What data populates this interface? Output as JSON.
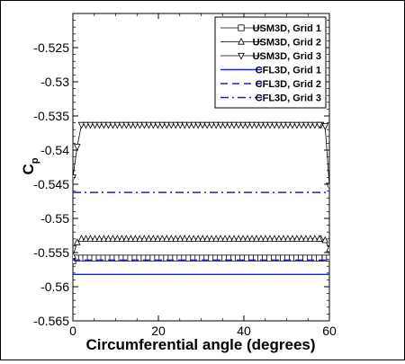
{
  "chart_data": {
    "type": "line",
    "xlabel": "Circumferential angle (degrees)",
    "ylabel_main": "C",
    "ylabel_sub": "p",
    "xlim": [
      0,
      60
    ],
    "ylim": [
      -0.565,
      -0.52
    ],
    "x_ticks": [
      0,
      20,
      40,
      60
    ],
    "y_ticks": [
      -0.565,
      -0.56,
      -0.555,
      -0.55,
      -0.545,
      -0.54,
      -0.535,
      -0.53,
      -0.525
    ],
    "y_tick_labels": [
      "-0.565",
      "-0.56",
      "-0.555",
      "-0.55",
      "-0.545",
      "-0.54",
      "-0.535",
      "-0.53",
      "-0.525"
    ],
    "x_tick_labels": [
      "0",
      "20",
      "40",
      "60"
    ],
    "grid": false,
    "legend_position": "top-right",
    "series": [
      {
        "name": "USM3D, Grid 1",
        "color": "#000000",
        "dash": "solid",
        "marker": "square",
        "x": [
          0,
          1,
          2,
          3,
          58,
          59,
          60
        ],
        "y": [
          -0.5562,
          -0.5558,
          -0.5558,
          -0.5558,
          -0.5558,
          -0.5558,
          -0.5558
        ],
        "flat_start": 3,
        "flat_end": 58,
        "flat_value": -0.5558,
        "marker_spacing": 1.05
      },
      {
        "name": "USM3D, Grid 2",
        "color": "#000000",
        "dash": "solid",
        "marker": "triangle-up",
        "x": [
          0,
          1,
          2,
          58,
          59,
          60
        ],
        "y": [
          -0.5555,
          -0.5535,
          -0.553,
          -0.553,
          -0.5532,
          -0.5545
        ],
        "flat_start": 2,
        "flat_end": 58,
        "flat_value": -0.553,
        "marker_spacing": 1.05
      },
      {
        "name": "USM3D, Grid 3",
        "color": "#000000",
        "dash": "solid",
        "marker": "triangle-down",
        "x": [
          0,
          1,
          2,
          58,
          59,
          60
        ],
        "y": [
          -0.544,
          -0.5395,
          -0.5363,
          -0.5363,
          -0.5365,
          -0.5452
        ],
        "flat_start": 2,
        "flat_end": 58,
        "flat_value": -0.5363,
        "marker_spacing": 1.05
      },
      {
        "name": "CFL3D, Grid 1",
        "color": "#1f1fd6",
        "dash": "solid",
        "marker": "none",
        "x": [
          0,
          60
        ],
        "y": [
          -0.5582,
          -0.5582
        ]
      },
      {
        "name": "CFL3D, Grid 2",
        "color": "#1f1fd6",
        "dash": "dashed",
        "marker": "none",
        "x": [
          0,
          60
        ],
        "y": [
          -0.5561,
          -0.5561
        ]
      },
      {
        "name": "CFL3D, Grid 3",
        "color": "#1f1fd6",
        "dash": "dashdot",
        "marker": "none",
        "x": [
          0,
          60
        ],
        "y": [
          -0.5462,
          -0.5462
        ]
      }
    ]
  }
}
